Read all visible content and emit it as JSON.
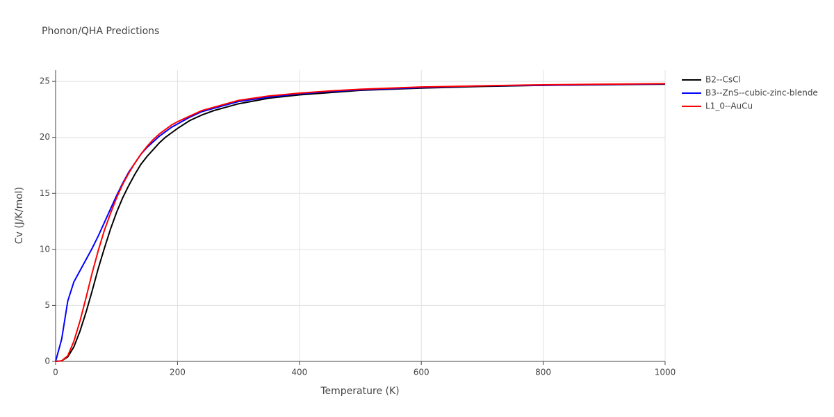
{
  "chart_data": {
    "type": "line",
    "title": "Phonon/QHA Predictions",
    "xlabel": "Temperature (K)",
    "ylabel": "Cv (J/K/mol)",
    "x": [
      0,
      10,
      20,
      30,
      40,
      50,
      60,
      70,
      80,
      90,
      100,
      110,
      120,
      130,
      140,
      150,
      160,
      170,
      180,
      190,
      200,
      220,
      240,
      260,
      280,
      300,
      350,
      400,
      450,
      500,
      600,
      700,
      800,
      900,
      1000
    ],
    "series": [
      {
        "name": "B2--CsCl",
        "color": "#000000",
        "values": [
          0,
          0.05,
          0.4,
          1.3,
          2.7,
          4.4,
          6.3,
          8.3,
          10.1,
          11.8,
          13.3,
          14.6,
          15.7,
          16.7,
          17.6,
          18.3,
          18.9,
          19.5,
          20.0,
          20.4,
          20.8,
          21.5,
          22.0,
          22.4,
          22.7,
          23.0,
          23.5,
          23.8,
          24.0,
          24.2,
          24.4,
          24.55,
          24.65,
          24.7,
          24.75
        ]
      },
      {
        "name": "B3--ZnS--cubic-zinc-blende",
        "color": "#0000ff",
        "values": [
          0,
          2.0,
          5.4,
          7.1,
          8.1,
          9.1,
          10.1,
          11.2,
          12.4,
          13.6,
          14.8,
          15.9,
          16.9,
          17.7,
          18.5,
          19.1,
          19.6,
          20.1,
          20.5,
          20.9,
          21.2,
          21.8,
          22.3,
          22.6,
          22.9,
          23.2,
          23.6,
          23.9,
          24.1,
          24.25,
          24.45,
          24.6,
          24.65,
          24.72,
          24.78
        ]
      },
      {
        "name": "L1_0--AuCu",
        "color": "#ff0000",
        "values": [
          0,
          0.05,
          0.5,
          1.8,
          3.6,
          5.7,
          7.9,
          9.9,
          11.7,
          13.2,
          14.6,
          15.8,
          16.8,
          17.7,
          18.5,
          19.2,
          19.8,
          20.3,
          20.7,
          21.1,
          21.4,
          21.9,
          22.4,
          22.7,
          23.0,
          23.3,
          23.7,
          23.95,
          24.15,
          24.3,
          24.5,
          24.6,
          24.7,
          24.75,
          24.8
        ]
      }
    ],
    "xlim": [
      0,
      1000
    ],
    "xticks": [
      0,
      200,
      400,
      600,
      800,
      1000
    ],
    "ylim": [
      0,
      26
    ],
    "yticks": [
      0,
      5,
      10,
      15,
      20,
      25
    ],
    "grid": true,
    "legend": "outside-right"
  }
}
